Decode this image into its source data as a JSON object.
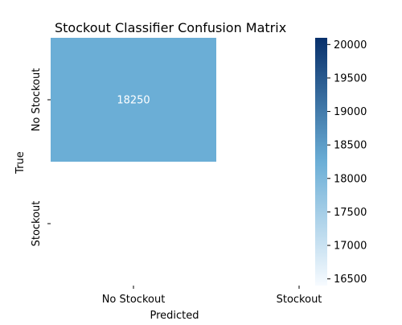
{
  "chart_data": {
    "type": "heatmap",
    "title": "Stockout Classifier Confusion Matrix",
    "xlabel": "Predicted",
    "ylabel": "True",
    "x_categories": [
      "No Stockout",
      "Stockout"
    ],
    "y_categories": [
      "No Stockout",
      "Stockout"
    ],
    "cells": [
      {
        "row": 0,
        "col": 0,
        "value": 18250,
        "label": "18250",
        "color": "#6baed6",
        "label_color": "#ffffff"
      },
      {
        "row": 0,
        "col": 1,
        "value": null,
        "label": "",
        "color": "#ffffff",
        "label_color": "#000000"
      },
      {
        "row": 1,
        "col": 0,
        "value": null,
        "label": "",
        "color": "#ffffff",
        "label_color": "#000000"
      },
      {
        "row": 1,
        "col": 1,
        "value": null,
        "label": "",
        "color": "#ffffff",
        "label_color": "#000000"
      }
    ],
    "colorbar": {
      "colormap": "Blues",
      "range": [
        16400,
        20100
      ],
      "ticks": [
        16500,
        17000,
        17500,
        18000,
        18500,
        19000,
        19500,
        20000
      ],
      "tick_labels": [
        "16500",
        "17000",
        "17500",
        "18000",
        "18500",
        "19000",
        "19500",
        "20000"
      ],
      "color_low": "#f7fbff",
      "color_mid": "#6baed6",
      "color_high": "#08306b"
    }
  }
}
